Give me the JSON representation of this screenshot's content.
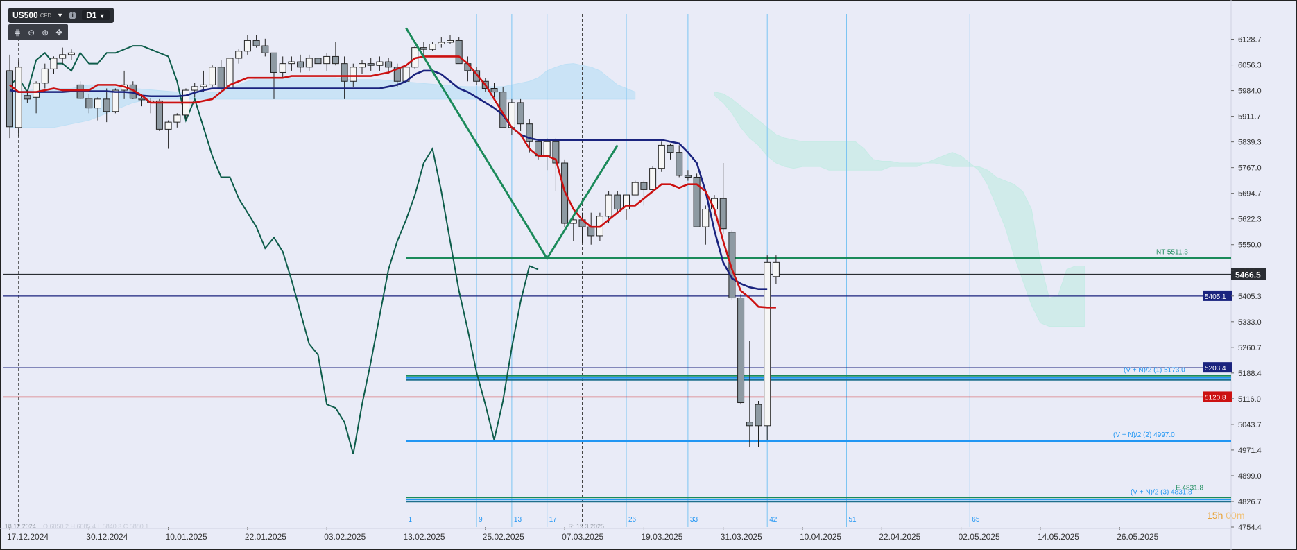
{
  "toolbar": {
    "symbol": "US500",
    "symbol_type": "CFD",
    "timeframe": "D1",
    "tools": [
      "crosshair-icon",
      "zoom-out-icon",
      "zoom-in-icon",
      "move-icon"
    ]
  },
  "timer": {
    "hours": "15h",
    "minutes": "00m"
  },
  "colors": {
    "background": "#e9ebf7",
    "candle_body": "#8e9aa3",
    "candle_bull": "#f6f6f6",
    "tenkan": "#cc1111",
    "kijun": "#1a237e",
    "chikou": "#0d5c4a",
    "cloud_blue": "#bfe0f5",
    "cloud_green": "#c7ebe6",
    "green_line": "#1b8a5a",
    "light_blue": "#2196f3"
  },
  "chart_data": {
    "type": "candlestick",
    "title": "",
    "ylim": [
      4754.4,
      6200
    ],
    "y_ticks": [
      "6128.7",
      "6056.3",
      "5984.0",
      "5911.7",
      "5839.3",
      "5767.0",
      "5694.7",
      "5622.3",
      "5550.0",
      "5477.7",
      "5405.3",
      "5333.0",
      "5260.7",
      "5188.4",
      "5116.0",
      "5043.7",
      "4971.4",
      "4899.0",
      "4826.7",
      "4754.4"
    ],
    "x_ticks": [
      "17.12.2024",
      "30.12.2024",
      "10.01.2025",
      "22.01.2025",
      "03.02.2025",
      "13.02.2025",
      "25.02.2025",
      "07.03.2025",
      "19.03.2025",
      "31.03.2025",
      "10.04.2025",
      "22.04.2025",
      "02.05.2025",
      "14.05.2025",
      "26.05.2025"
    ],
    "x_tick_bars": [
      0,
      9,
      18,
      27,
      36,
      45,
      54,
      63,
      72,
      81,
      90,
      99,
      108,
      117,
      126
    ],
    "candles": [
      [
        6040,
        6085,
        5850,
        5882
      ],
      [
        5880,
        6070,
        5855,
        6050
      ],
      [
        5970,
        5985,
        5950,
        5960
      ],
      [
        5965,
        6010,
        5920,
        6005
      ],
      [
        6005,
        6060,
        5990,
        6045
      ],
      [
        6045,
        6080,
        6030,
        6075
      ],
      [
        6075,
        6105,
        6060,
        6085
      ],
      [
        6085,
        6100,
        6070,
        6090
      ],
      [
        6000,
        6010,
        5960,
        5962
      ],
      [
        5962,
        5975,
        5920,
        5935
      ],
      [
        5935,
        5965,
        5900,
        5960
      ],
      [
        5960,
        5990,
        5895,
        5925
      ],
      [
        5925,
        5990,
        5920,
        5985
      ],
      [
        5985,
        6040,
        5960,
        6000
      ],
      [
        6000,
        6010,
        5960,
        5962
      ],
      [
        5962,
        5975,
        5940,
        5958
      ],
      [
        5950,
        5962,
        5920,
        5955
      ],
      [
        5955,
        5960,
        5870,
        5875
      ],
      [
        5875,
        5900,
        5820,
        5895
      ],
      [
        5895,
        5920,
        5880,
        5915
      ],
      [
        5915,
        5990,
        5905,
        5985
      ],
      [
        5985,
        6005,
        5965,
        5995
      ],
      [
        5995,
        6040,
        5980,
        6000
      ],
      [
        6000,
        6055,
        5995,
        6050
      ],
      [
        6050,
        6070,
        5980,
        5988
      ],
      [
        5990,
        6080,
        5985,
        6075
      ],
      [
        6075,
        6100,
        6060,
        6095
      ],
      [
        6095,
        6140,
        6085,
        6125
      ],
      [
        6125,
        6140,
        6105,
        6110
      ],
      [
        6110,
        6130,
        6080,
        6090
      ],
      [
        6090,
        6090,
        5960,
        6035
      ],
      [
        6035,
        6080,
        6020,
        6060
      ],
      [
        6060,
        6080,
        6040,
        6065
      ],
      [
        6065,
        6085,
        6035,
        6050
      ],
      [
        6050,
        6085,
        6040,
        6075
      ],
      [
        6075,
        6085,
        6050,
        6060
      ],
      [
        6060,
        6090,
        6040,
        6080
      ],
      [
        6080,
        6120,
        6055,
        6060
      ],
      [
        6060,
        6080,
        5960,
        6010
      ],
      [
        6010,
        6060,
        5995,
        6050
      ],
      [
        6050,
        6070,
        6030,
        6060
      ],
      [
        6060,
        6075,
        6040,
        6055
      ],
      [
        6055,
        6080,
        6040,
        6065
      ],
      [
        6065,
        6075,
        6030,
        6050
      ],
      [
        6050,
        6060,
        5995,
        6010
      ],
      [
        6010,
        6070,
        6005,
        6050
      ],
      [
        6050,
        6110,
        6045,
        6105
      ],
      [
        6105,
        6120,
        6085,
        6100
      ],
      [
        6100,
        6120,
        6095,
        6115
      ],
      [
        6115,
        6135,
        6105,
        6120
      ],
      [
        6120,
        6140,
        6115,
        6125
      ],
      [
        6125,
        6135,
        6060,
        6060
      ],
      [
        6060,
        6080,
        6010,
        6040
      ],
      [
        6040,
        6050,
        6000,
        6010
      ],
      [
        6010,
        6020,
        5980,
        5990
      ],
      [
        5990,
        6005,
        5965,
        5980
      ],
      [
        5980,
        5995,
        5880,
        5880
      ],
      [
        5880,
        5960,
        5860,
        5950
      ],
      [
        5950,
        5960,
        5870,
        5890
      ],
      [
        5890,
        5905,
        5810,
        5840
      ],
      [
        5840,
        5845,
        5790,
        5800
      ],
      [
        5800,
        5850,
        5760,
        5840
      ],
      [
        5840,
        5850,
        5700,
        5780
      ],
      [
        5780,
        5790,
        5600,
        5610
      ],
      [
        5610,
        5630,
        5560,
        5620
      ],
      [
        5620,
        5640,
        5555,
        5600
      ],
      [
        5600,
        5640,
        5550,
        5575
      ],
      [
        5575,
        5640,
        5560,
        5630
      ],
      [
        5630,
        5700,
        5610,
        5690
      ],
      [
        5690,
        5700,
        5640,
        5650
      ],
      [
        5650,
        5690,
        5620,
        5690
      ],
      [
        5690,
        5730,
        5690,
        5725
      ],
      [
        5725,
        5730,
        5660,
        5705
      ],
      [
        5705,
        5770,
        5700,
        5765
      ],
      [
        5765,
        5840,
        5755,
        5830
      ],
      [
        5830,
        5835,
        5790,
        5810
      ],
      [
        5810,
        5830,
        5740,
        5745
      ],
      [
        5745,
        5760,
        5730,
        5740
      ],
      [
        5740,
        5750,
        5600,
        5600
      ],
      [
        5600,
        5660,
        5550,
        5650
      ],
      [
        5650,
        5690,
        5630,
        5680
      ],
      [
        5680,
        5780,
        5580,
        5595
      ],
      [
        5585,
        5590,
        5395,
        5400
      ],
      [
        5400,
        5410,
        5100,
        5105
      ],
      [
        5050,
        5280,
        4980,
        5040
      ],
      [
        5100,
        5110,
        4980,
        5040
      ],
      [
        5040,
        5520,
        5000,
        5500
      ],
      [
        5460,
        5520,
        5440,
        5500
      ]
    ],
    "tenkan": [
      6000,
      5980,
      5980,
      5980,
      5985,
      5990,
      5985,
      5985,
      5985,
      5985,
      6000,
      6000,
      6000,
      5995,
      5985,
      5970,
      5950,
      5950,
      5950,
      5950,
      5950,
      5950,
      5955,
      5960,
      5980,
      6000,
      6010,
      6020,
      6020,
      6020,
      6020,
      6020,
      6025,
      6025,
      6025,
      6025,
      6025,
      6025,
      6025,
      6025,
      6025,
      6025,
      6030,
      6035,
      6045,
      6055,
      6075,
      6080,
      6080,
      6080,
      6080,
      6080,
      6060,
      6030,
      6000,
      5960,
      5920,
      5880,
      5860,
      5820,
      5800,
      5800,
      5790,
      5700,
      5650,
      5620,
      5600,
      5600,
      5620,
      5640,
      5660,
      5660,
      5680,
      5700,
      5720,
      5720,
      5710,
      5720,
      5720,
      5700,
      5650,
      5560,
      5480,
      5420,
      5400,
      5375,
      5373,
      5373
    ],
    "kijun": [
      5985,
      5980,
      5980,
      5980,
      5980,
      5980,
      5980,
      5982,
      5982,
      5982,
      5982,
      5982,
      5980,
      5980,
      5978,
      5970,
      5968,
      5968,
      5968,
      5968,
      5970,
      5978,
      5985,
      5990,
      5990,
      5990,
      5990,
      5990,
      5990,
      5990,
      5990,
      5990,
      5990,
      5990,
      5990,
      5990,
      5990,
      5990,
      5990,
      5990,
      5990,
      5990,
      5990,
      5995,
      6000,
      6010,
      6030,
      6040,
      6040,
      6030,
      6010,
      5990,
      5980,
      5965,
      5950,
      5935,
      5915,
      5880,
      5860,
      5850,
      5845,
      5845,
      5845,
      5845,
      5845,
      5845,
      5845,
      5845,
      5845,
      5845,
      5845,
      5845,
      5845,
      5845,
      5845,
      5840,
      5835,
      5810,
      5780,
      5700,
      5590,
      5500,
      5455,
      5440,
      5430,
      5425,
      5425
    ],
    "chikou": [
      6000,
      6020,
      5980,
      6070,
      6090,
      6060,
      6060,
      6040,
      6090,
      6060,
      6060,
      6090,
      6090,
      6100,
      6110,
      6110,
      6100,
      6090,
      6080,
      6010,
      5900,
      5960,
      5880,
      5800,
      5740,
      5740,
      5680,
      5640,
      5600,
      5540,
      5570,
      5530,
      5450,
      5360,
      5270,
      5240,
      5100,
      5090,
      5050,
      4960,
      5100,
      5220,
      5350,
      5480,
      5560,
      5620,
      5690,
      5780,
      5820,
      5700,
      5560,
      5420,
      5310,
      5190,
      5100,
      5000,
      5110,
      5260,
      5390,
      5490,
      5480
    ],
    "cloud_blue_top": [
      5980,
      5982,
      5984,
      5986,
      5988,
      5990,
      5990,
      5990,
      5995,
      6000,
      6000,
      6000,
      5995,
      5990,
      5990,
      5988,
      5986,
      5984,
      5982,
      5980,
      5978,
      5978,
      5978,
      5978,
      5982,
      5990,
      6000,
      6010,
      6018,
      6020,
      6020,
      6020,
      6020,
      6020,
      6020,
      6020,
      6020,
      6020,
      6015,
      6015,
      6015,
      6015,
      6015,
      6012,
      6010,
      6008,
      6006,
      6004,
      6002,
      6000,
      5998,
      5996,
      5995,
      5995,
      5995,
      5995,
      5995,
      6000,
      6005,
      6010,
      6020,
      6040,
      6050,
      6058,
      6060,
      6055,
      6050,
      6040,
      6020,
      6000,
      5990,
      5980
    ],
    "cloud_blue_bot": [
      5880,
      5880,
      5880,
      5880,
      5880,
      5880,
      5885,
      5890,
      5895,
      5900,
      5910,
      5920,
      5930,
      5940,
      5950,
      5955,
      5960,
      5960,
      5960,
      5960,
      5960,
      5960,
      5960,
      5960,
      5960,
      5960,
      5960,
      5960,
      5960,
      5960,
      5960,
      5960,
      5960,
      5960,
      5960,
      5960,
      5960,
      5960,
      5960,
      5960,
      5960,
      5960,
      5960,
      5960,
      5960,
      5960,
      5960,
      5960,
      5960,
      5960,
      5960,
      5960,
      5960,
      5960,
      5960,
      5960,
      5960,
      5960,
      5960,
      5960,
      5960,
      5960,
      5960,
      5960,
      5960,
      5960,
      5960,
      5960,
      5960,
      5960,
      5960,
      5960
    ],
    "cloud_green_top": [
      5980,
      5975,
      5960,
      5940,
      5920,
      5900,
      5880,
      5860,
      5850,
      5845,
      5840,
      5840,
      5840,
      5840,
      5840,
      5840,
      5840,
      5820,
      5790,
      5785,
      5785,
      5780,
      5780,
      5780,
      5780,
      5780,
      5775,
      5770,
      5770,
      5770,
      5770,
      5760,
      5740,
      5730,
      5720,
      5700,
      5650,
      5500,
      5400,
      5405,
      5480,
      5490,
      5490
    ],
    "cloud_green_bot": [
      5970,
      5950,
      5920,
      5880,
      5850,
      5830,
      5800,
      5780,
      5770,
      5765,
      5770,
      5770,
      5770,
      5760,
      5760,
      5760,
      5760,
      5760,
      5760,
      5760,
      5770,
      5770,
      5770,
      5770,
      5780,
      5790,
      5800,
      5810,
      5800,
      5780,
      5760,
      5720,
      5660,
      5600,
      5520,
      5450,
      5380,
      5330,
      5320,
      5320,
      5320,
      5320,
      5320
    ],
    "h_lines": [
      {
        "value": 5511.3,
        "label": "NT 5511.3",
        "color": "#1b8a5a"
      },
      {
        "value": 5466.5,
        "label": "5466.5",
        "color": "#2a2d33"
      },
      {
        "value": 5405.1,
        "label": "5405.1",
        "color": "#1a237e"
      },
      {
        "value": 5203.4,
        "label": "5203.4",
        "color": "#1a237e"
      },
      {
        "value": 5120.8,
        "label": "5120.8",
        "color": "#cc1111"
      },
      {
        "value": 4997.0,
        "label": "(V + N)/2 (2) 4997.0",
        "color": "#2196f3"
      }
    ],
    "bands": [
      {
        "value": 5175,
        "label": "(V + N)/2 (1) 5173.0",
        "colors": [
          "#1b8a5a",
          "#2196f3",
          "#1f6f8b"
        ]
      },
      {
        "value": 4832,
        "label": "(V + N)/2 (3) 4831.8",
        "colors": [
          "#1b8a5a",
          "#2196f3",
          "#1f6f8b"
        ]
      }
    ],
    "label_e": "E 4831.8",
    "v_lines": [
      {
        "bar": 45,
        "label": "1"
      },
      {
        "bar": 53,
        "label": "9"
      },
      {
        "bar": 57,
        "label": "13"
      },
      {
        "bar": 61,
        "label": "17"
      },
      {
        "bar": 70,
        "label": "26"
      },
      {
        "bar": 77,
        "label": "33"
      },
      {
        "bar": 86,
        "label": "42"
      },
      {
        "bar": 95,
        "label": "51"
      },
      {
        "bar": 109,
        "label": "65"
      }
    ],
    "dashed_v": [
      {
        "bar": 1,
        "label": "18.12.2024"
      },
      {
        "bar": 65,
        "label": "R: 19.3.2025"
      }
    ],
    "green_zigzag": [
      [
        45,
        6160
      ],
      [
        61,
        5511
      ],
      [
        69,
        5830
      ]
    ],
    "ohlc_faint": "O 6050.2 H 6085.4 L 5840.3 C 5880.1"
  }
}
